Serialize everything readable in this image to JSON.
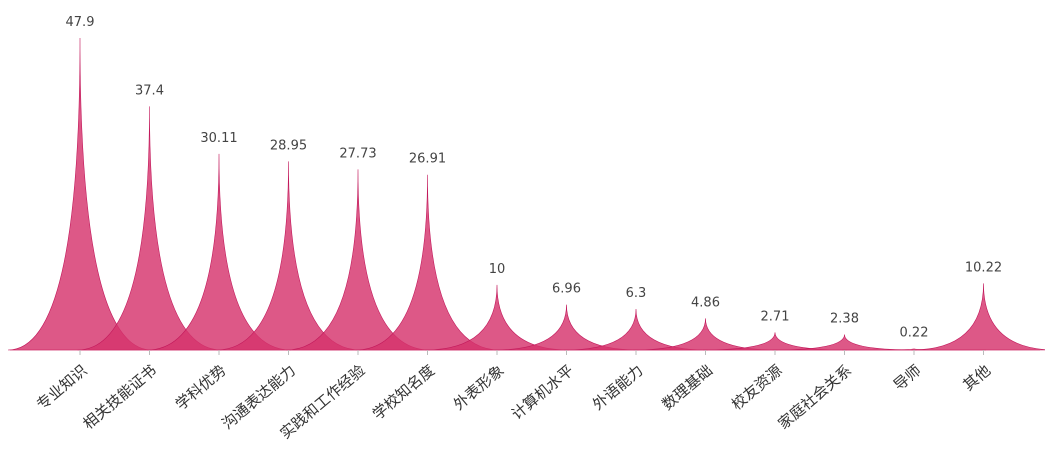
{
  "chart_data": {
    "type": "area",
    "title": "",
    "xlabel": "",
    "ylabel": "",
    "categories": [
      "专业知识",
      "相关技能证书",
      "学科优势",
      "沟通表达能力",
      "实践和工作经验",
      "学校知名度",
      "外表形象",
      "计算机水平",
      "外语能力",
      "数理基础",
      "校友资源",
      "家庭社会关系",
      "导师",
      "其他"
    ],
    "values": [
      47.9,
      37.4,
      30.11,
      28.95,
      27.73,
      26.91,
      10,
      6.96,
      6.3,
      4.86,
      2.71,
      2.38,
      0.22,
      10.22
    ],
    "value_labels": [
      "47.9",
      "37.4",
      "30.11",
      "28.95",
      "27.73",
      "26.91",
      "10",
      "6.96",
      "6.3",
      "4.86",
      "2.71",
      "2.38",
      "0.22",
      "10.22"
    ],
    "ylim": [
      0,
      50
    ],
    "grid": false,
    "legend": "none",
    "color": "#d6336c"
  }
}
